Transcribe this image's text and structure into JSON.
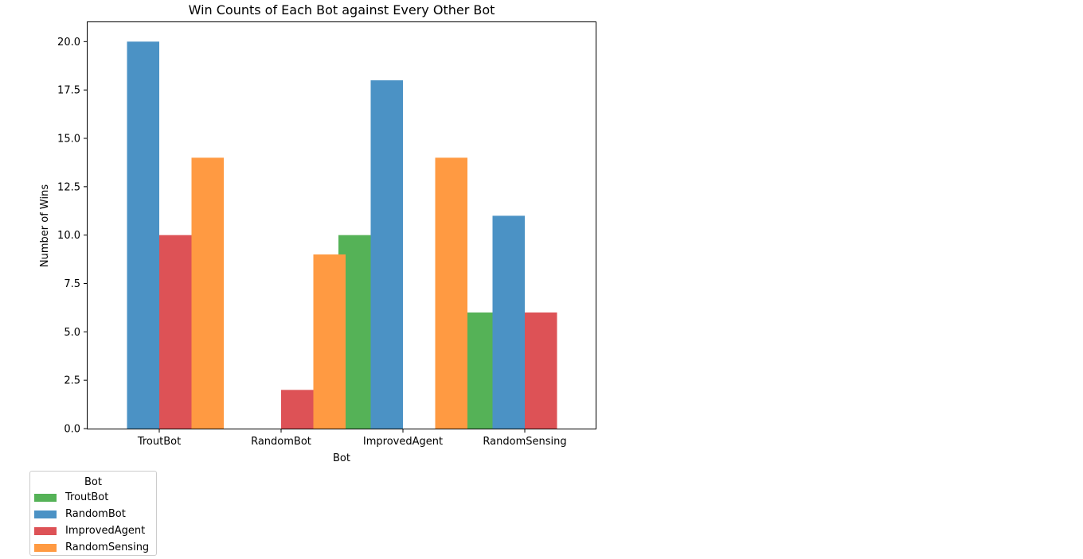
{
  "chart_data": {
    "type": "bar",
    "title": "Win Counts of Each Bot against Every Other Bot",
    "xlabel": "Bot",
    "ylabel": "Number of Wins",
    "categories": [
      "TroutBot",
      "RandomBot",
      "ImprovedAgent",
      "RandomSensing"
    ],
    "series": [
      {
        "name": "TroutBot",
        "color": "#55b257",
        "values": [
          null,
          null,
          10,
          6
        ]
      },
      {
        "name": "RandomBot",
        "color": "#4b92c5",
        "values": [
          20,
          null,
          18,
          11
        ]
      },
      {
        "name": "ImprovedAgent",
        "color": "#dd5256",
        "values": [
          10,
          2,
          null,
          6
        ]
      },
      {
        "name": "RandomSensing",
        "color": "#ff9a42",
        "values": [
          14,
          9,
          14,
          null
        ]
      }
    ],
    "ylim": [
      0,
      21
    ],
    "yticks": [
      "0.0",
      "2.5",
      "5.0",
      "7.5",
      "10.0",
      "12.5",
      "15.0",
      "17.5",
      "20.0"
    ],
    "grid": false,
    "legend": {
      "title": "Bot",
      "placement": "below-left"
    }
  }
}
